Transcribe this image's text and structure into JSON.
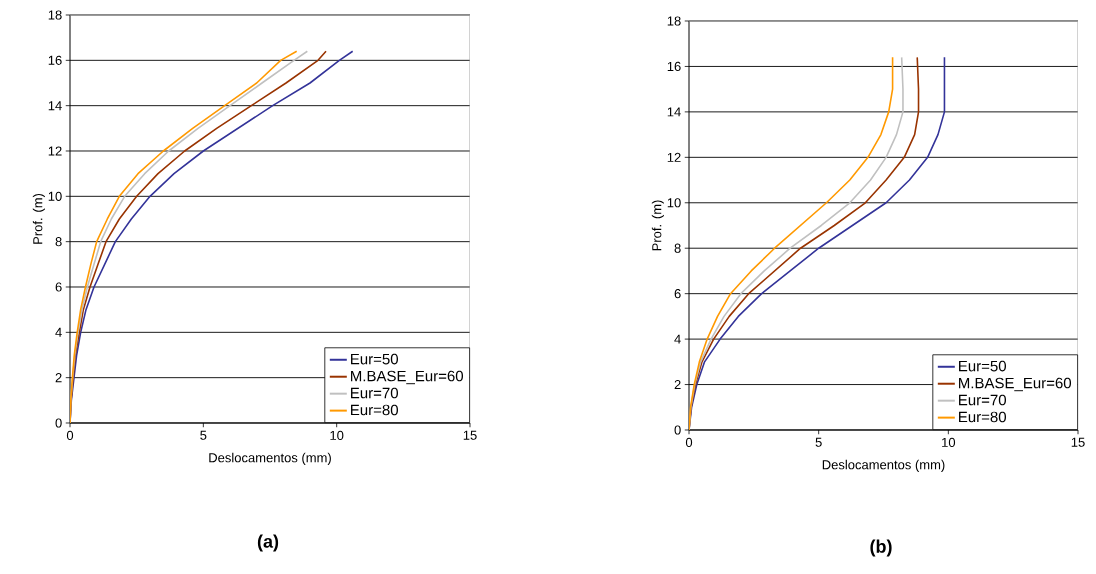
{
  "chart_data": [
    {
      "type": "line",
      "xlabel": "Deslocamentos (mm)",
      "ylabel": "Prof. (m)",
      "annotations": [
        "(a)"
      ],
      "xlim": [
        0,
        15
      ],
      "ylim": [
        0,
        18
      ],
      "xticks": [
        0,
        5,
        10,
        15
      ],
      "yticks": [
        0,
        2,
        4,
        6,
        8,
        10,
        12,
        14,
        16,
        18
      ],
      "grid": "y",
      "legend": "bottom right",
      "marker": "none",
      "line_style": "solid",
      "series": [
        {
          "name": "Eur=50",
          "color": "#333399",
          "x": [
            0,
            0.05,
            0.15,
            0.25,
            0.4,
            0.6,
            0.9,
            1.3,
            1.7,
            2.3,
            3.0,
            3.9,
            5.0,
            6.3,
            7.6,
            9.0,
            10.1,
            10.6
          ],
          "values": [
            0,
            1,
            2,
            3,
            4,
            5,
            6,
            7,
            8,
            9,
            10,
            11,
            12,
            13,
            14,
            15,
            16,
            16.4
          ]
        },
        {
          "name": "M.BASE_Eur=60",
          "color": "#993300",
          "x": [
            0,
            0.04,
            0.12,
            0.2,
            0.35,
            0.5,
            0.75,
            1.05,
            1.35,
            1.85,
            2.5,
            3.3,
            4.3,
            5.5,
            6.8,
            8.1,
            9.3,
            9.6
          ],
          "values": [
            0,
            1,
            2,
            3,
            4,
            5,
            6,
            7,
            8,
            9,
            10,
            11,
            12,
            13,
            14,
            15,
            16,
            16.4
          ]
        },
        {
          "name": "Eur=70",
          "color": "#c0c0c0",
          "x": [
            0,
            0.03,
            0.1,
            0.18,
            0.3,
            0.45,
            0.65,
            0.9,
            1.15,
            1.55,
            2.05,
            2.8,
            3.7,
            4.8,
            6.0,
            7.2,
            8.4,
            8.9
          ],
          "values": [
            0,
            1,
            2,
            3,
            4,
            5,
            6,
            7,
            8,
            9,
            10,
            11,
            12,
            13,
            14,
            15,
            16,
            16.4
          ]
        },
        {
          "name": "Eur=80",
          "color": "#ff9900",
          "x": [
            0,
            0.03,
            0.09,
            0.16,
            0.27,
            0.4,
            0.58,
            0.78,
            1.0,
            1.4,
            1.85,
            2.55,
            3.5,
            4.6,
            5.8,
            7.0,
            7.9,
            8.5
          ],
          "values": [
            0,
            1,
            2,
            3,
            4,
            5,
            6,
            7,
            8,
            9,
            10,
            11,
            12,
            13,
            14,
            15,
            16,
            16.4
          ]
        }
      ]
    },
    {
      "type": "line",
      "xlabel": "Deslocamentos (mm)",
      "ylabel": "Prof. (m)",
      "annotations": [
        "(b)"
      ],
      "xlim": [
        0,
        15
      ],
      "ylim": [
        0,
        18
      ],
      "xticks": [
        0,
        5,
        10,
        15
      ],
      "yticks": [
        0,
        2,
        4,
        6,
        8,
        10,
        12,
        14,
        16,
        18
      ],
      "grid": "y",
      "legend": "bottom right",
      "marker": "none",
      "line_style": "solid",
      "series": [
        {
          "name": "Eur=50",
          "color": "#333399",
          "x": [
            0,
            0.1,
            0.3,
            0.6,
            1.2,
            1.9,
            2.8,
            3.9,
            5.0,
            6.3,
            7.6,
            8.5,
            9.2,
            9.6,
            9.85,
            9.85
          ],
          "values": [
            0,
            1,
            2,
            3,
            4,
            5,
            6,
            7,
            8,
            9,
            10,
            11,
            12,
            13,
            14,
            16.4
          ]
        },
        {
          "name": "M.BASE_Eur=60",
          "color": "#993300",
          "x": [
            0,
            0.08,
            0.25,
            0.5,
            0.95,
            1.55,
            2.3,
            3.3,
            4.3,
            5.6,
            6.8,
            7.6,
            8.3,
            8.7,
            8.85,
            8.85,
            8.8
          ],
          "values": [
            0,
            1,
            2,
            3,
            4,
            5,
            6,
            7,
            8,
            9,
            10,
            11,
            12,
            13,
            14,
            15,
            16.4
          ]
        },
        {
          "name": "Eur=70",
          "color": "#c0c0c0",
          "x": [
            0,
            0.07,
            0.22,
            0.45,
            0.85,
            1.35,
            2.0,
            2.9,
            3.9,
            5.1,
            6.2,
            7.0,
            7.6,
            8.0,
            8.25,
            8.25,
            8.2
          ],
          "values": [
            0,
            1,
            2,
            3,
            4,
            5,
            6,
            7,
            8,
            9,
            10,
            11,
            12,
            13,
            14,
            15,
            16.4
          ]
        },
        {
          "name": "Eur=80",
          "color": "#ff9900",
          "x": [
            0,
            0.06,
            0.2,
            0.4,
            0.7,
            1.1,
            1.6,
            2.4,
            3.3,
            4.3,
            5.3,
            6.2,
            6.9,
            7.4,
            7.7,
            7.85,
            7.85
          ],
          "values": [
            0,
            1,
            2,
            3,
            4,
            5,
            6,
            7,
            8,
            9,
            10,
            11,
            12,
            13,
            14,
            15,
            16.4
          ]
        }
      ]
    }
  ]
}
